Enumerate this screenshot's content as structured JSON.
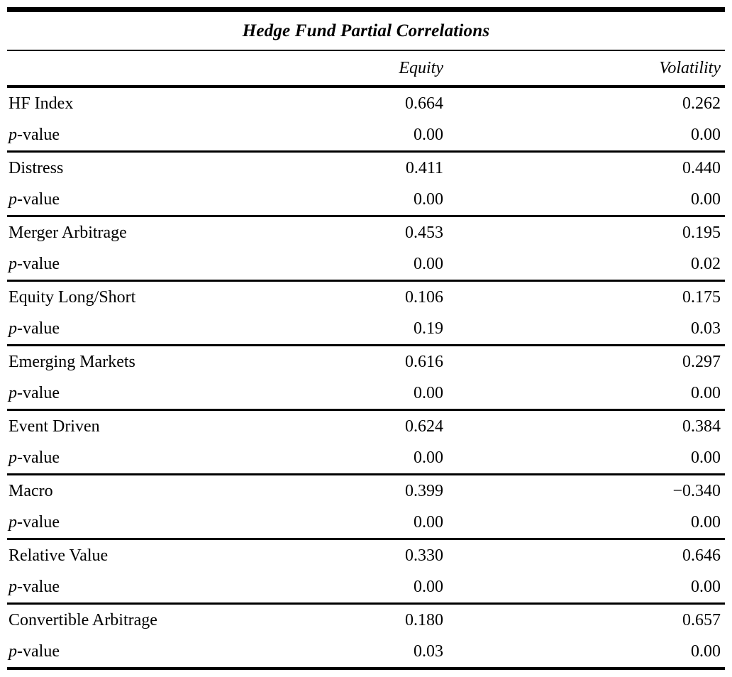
{
  "table": {
    "title": "Hedge Fund Partial Correlations",
    "columns": [
      "Equity",
      "Volatility"
    ],
    "p_label": {
      "italic": "p",
      "rest": "-value"
    },
    "rows": [
      {
        "label": "HF Index",
        "equity": "0.664",
        "volatility": "0.262",
        "p_equity": "0.00",
        "p_volatility": "0.00"
      },
      {
        "label": "Distress",
        "equity": "0.411",
        "volatility": "0.440",
        "p_equity": "0.00",
        "p_volatility": "0.00"
      },
      {
        "label": "Merger Arbitrage",
        "equity": "0.453",
        "volatility": "0.195",
        "p_equity": "0.00",
        "p_volatility": "0.02"
      },
      {
        "label": "Equity Long/Short",
        "equity": "0.106",
        "volatility": "0.175",
        "p_equity": "0.19",
        "p_volatility": "0.03"
      },
      {
        "label": "Emerging Markets",
        "equity": "0.616",
        "volatility": "0.297",
        "p_equity": "0.00",
        "p_volatility": "0.00"
      },
      {
        "label": "Event Driven",
        "equity": "0.624",
        "volatility": "0.384",
        "p_equity": "0.00",
        "p_volatility": "0.00"
      },
      {
        "label": "Macro",
        "equity": "0.399",
        "volatility": "−0.340",
        "p_equity": "0.00",
        "p_volatility": "0.00"
      },
      {
        "label": "Relative Value",
        "equity": "0.330",
        "volatility": "0.646",
        "p_equity": "0.00",
        "p_volatility": "0.00"
      },
      {
        "label": "Convertible Arbitrage",
        "equity": "0.180",
        "volatility": "0.657",
        "p_equity": "0.03",
        "p_volatility": "0.00"
      }
    ]
  }
}
